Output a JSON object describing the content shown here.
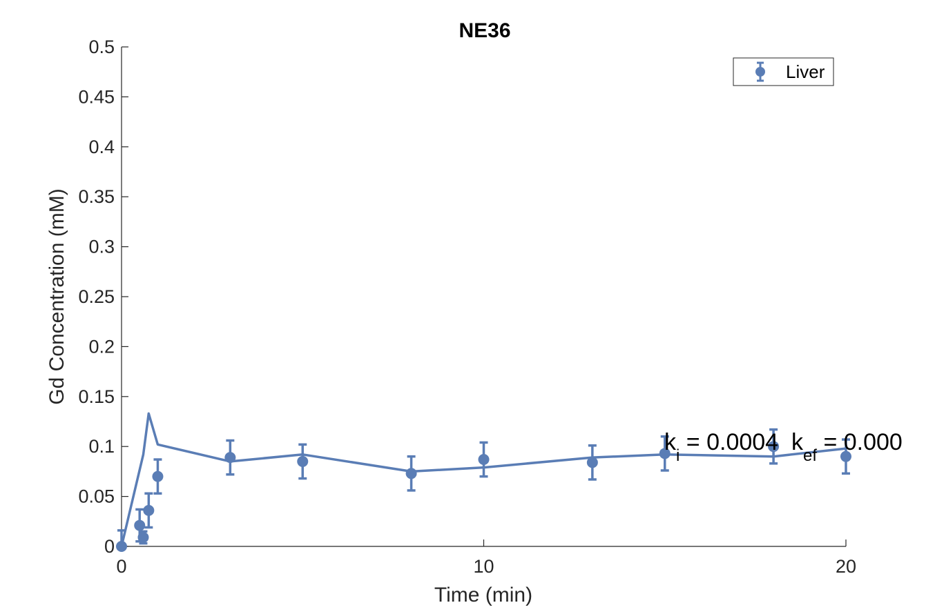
{
  "chart_data": {
    "type": "scatter",
    "title": "NE36",
    "xlabel": "Time (min)",
    "ylabel": "Gd Concentration (mM)",
    "xlim": [
      0,
      20
    ],
    "ylim": [
      0,
      0.5
    ],
    "xticks": [
      0,
      10,
      20
    ],
    "xtick_labels": [
      "0",
      "10",
      "20"
    ],
    "yticks": [
      0,
      0.05,
      0.1,
      0.15,
      0.2,
      0.25,
      0.3,
      0.35,
      0.4,
      0.45,
      0.5
    ],
    "ytick_labels": [
      "0",
      "0.05",
      "0.1",
      "0.15",
      "0.2",
      "0.25",
      "0.3",
      "0.35",
      "0.4",
      "0.45",
      "0.5"
    ],
    "grid": false,
    "legend_position": "top-right",
    "series": [
      {
        "name": "Liver",
        "style": "errorbar",
        "color": "#5a7db5",
        "x": [
          0,
          0.5,
          0.6,
          0.75,
          1.0,
          3.0,
          5.0,
          8.0,
          10.0,
          13.0,
          15.0,
          18.0,
          20.0
        ],
        "y": [
          0.0,
          0.021,
          0.009,
          0.036,
          0.07,
          0.089,
          0.085,
          0.073,
          0.087,
          0.084,
          0.093,
          0.1,
          0.09
        ],
        "err": [
          0.016,
          0.016,
          0.006,
          0.017,
          0.017,
          0.017,
          0.017,
          0.017,
          0.017,
          0.017,
          0.017,
          0.017,
          0.017
        ]
      },
      {
        "style": "line",
        "color": "#5a7db5",
        "x": [
          0,
          0.6,
          0.75,
          1.0,
          3.0,
          5.0,
          8.0,
          10.0,
          13.0,
          15.0,
          18.0,
          20.0
        ],
        "y": [
          0.0,
          0.092,
          0.133,
          0.102,
          0.085,
          0.092,
          0.075,
          0.079,
          0.089,
          0.092,
          0.09,
          0.098
        ]
      }
    ],
    "annotation": {
      "k_main": "k",
      "k_sub": "i",
      "k_value": " = 0.0004  ",
      "kef_main": "k",
      "kef_sub": "ef",
      "kef_value": " = 0.000"
    }
  },
  "legend": {
    "label": "Liver",
    "color": "#5a7db5"
  }
}
